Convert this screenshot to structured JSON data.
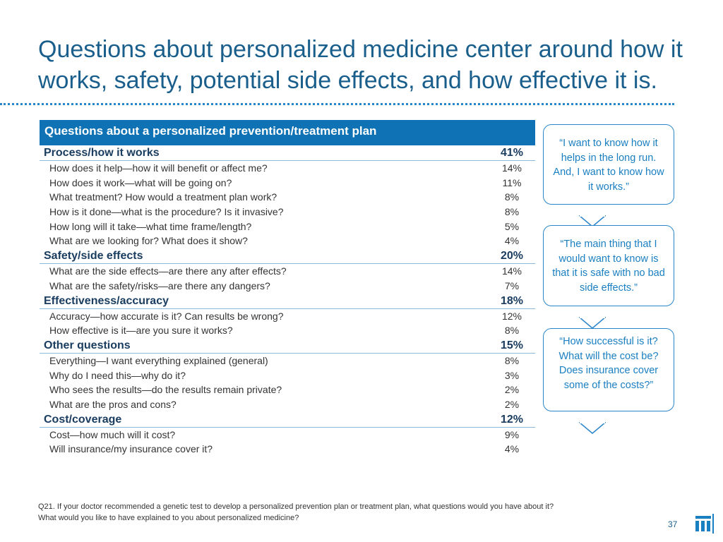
{
  "title": "Questions about personalized medicine center around how it works, safety, potential side effects, and how effective it is.",
  "table": {
    "header": "Questions about a personalized prevention/treatment plan",
    "categories": [
      {
        "name": "Process/how it works",
        "pct": "41%",
        "items": [
          {
            "label": "How does it help—how it will benefit or affect me?",
            "pct": "14%"
          },
          {
            "label": "How does it work—what will be going on?",
            "pct": "11%"
          },
          {
            "label": "What treatment? How would a treatment plan work?",
            "pct": "8%"
          },
          {
            "label": "How is it done—what is the procedure? Is it invasive?",
            "pct": "8%"
          },
          {
            "label": "How long will it take—what time frame/length?",
            "pct": "5%"
          },
          {
            "label": "What are we looking for? What does it show?",
            "pct": "4%"
          }
        ]
      },
      {
        "name": "Safety/side effects",
        "pct": "20%",
        "items": [
          {
            "label": "What are the side effects—are there any after effects?",
            "pct": "14%"
          },
          {
            "label": "What are the safety/risks—are there any dangers?",
            "pct": "7%"
          }
        ]
      },
      {
        "name": "Effectiveness/accuracy",
        "pct": "18%",
        "items": [
          {
            "label": "Accuracy—how accurate is it? Can results be wrong?",
            "pct": "12%"
          },
          {
            "label": "How effective is it—are you sure it works?",
            "pct": "8%"
          }
        ]
      },
      {
        "name": "Other questions",
        "pct": "15%",
        "items": [
          {
            "label": "Everything—I want everything explained (general)",
            "pct": "8%"
          },
          {
            "label": "Why do I need this—why do it?",
            "pct": "3%"
          },
          {
            "label": "Who sees the results—do the results remain private?",
            "pct": "2%"
          },
          {
            "label": "What are the pros and cons?",
            "pct": "2%"
          }
        ]
      },
      {
        "name": "Cost/coverage",
        "pct": "12%",
        "items": [
          {
            "label": "Cost—how much will it cost?",
            "pct": "9%"
          },
          {
            "label": "Will insurance/my insurance cover it?",
            "pct": "4%"
          }
        ]
      }
    ]
  },
  "quotes": [
    "“I want to know how it helps in the long run. And, I want to know how it works.”",
    "“The main thing that I would want to know is that it is safe with no bad side effects.”",
    "“How successful is it? What will the cost be? Does insurance cover some of the costs?”"
  ],
  "footnote": {
    "line1": "Q21. If your doctor recommended a genetic test to develop a personalized prevention plan or treatment plan, what questions would you have about it?",
    "line2": "What would you like to have explained to you about personalized medicine?"
  },
  "page_number": "37",
  "colors": {
    "accent": "#0e72b5",
    "title": "#1a5f8c",
    "quote": "#1a7fc1"
  }
}
